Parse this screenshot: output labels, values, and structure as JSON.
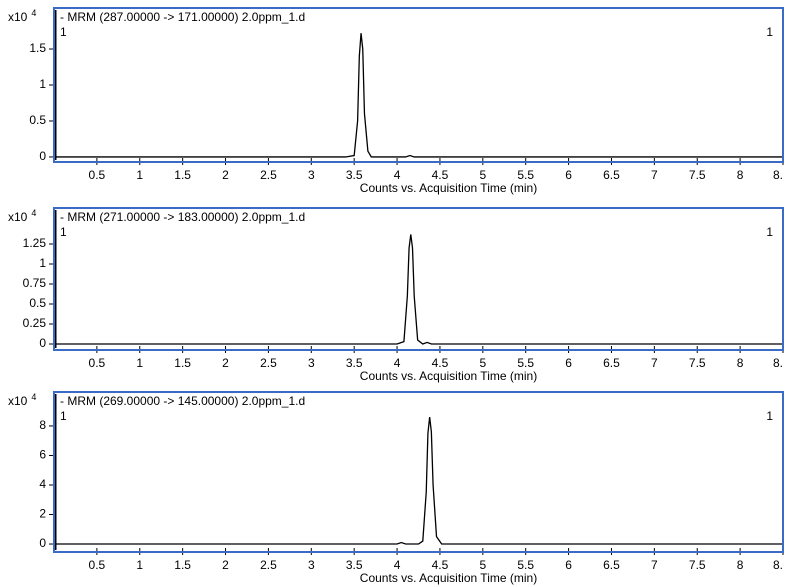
{
  "chart_data": [
    {
      "type": "line",
      "title": "- MRM (287.00000 -> 171.00000) 2.0ppm_1.d",
      "scale_prefix": "x10",
      "scale_exponent": "4",
      "panel_label": "1",
      "x_label": "Counts vs. Acquisition Time (min)",
      "frame_color": "#3a6cc6",
      "xlim": [
        0,
        8.5
      ],
      "xticks": [
        0.5,
        1,
        1.5,
        2,
        2.5,
        3,
        3.5,
        4,
        4.5,
        5,
        5.5,
        6,
        6.5,
        7,
        7.5,
        8,
        {
          "value": 8.5,
          "label": "8."
        }
      ],
      "ylim": [
        -0.07,
        2.07
      ],
      "yticks": [
        0,
        0.5,
        1,
        1.5
      ],
      "series": [
        {
          "color": "#000000",
          "x": [
            0,
            3.4,
            3.5,
            3.54,
            3.56,
            3.58,
            3.6,
            3.62,
            3.66,
            3.7,
            4.1,
            4.15,
            4.2,
            8.5
          ],
          "values": [
            0,
            0,
            0.02,
            0.5,
            1.4,
            1.72,
            1.5,
            0.6,
            0.08,
            0,
            0,
            0.02,
            0,
            0
          ]
        }
      ]
    },
    {
      "type": "line",
      "title": "- MRM (271.00000 -> 183.00000) 2.0ppm_1.d",
      "scale_prefix": "x10",
      "scale_exponent": "4",
      "panel_label": "1",
      "x_label": "Counts vs. Acquisition Time (min)",
      "frame_color": "#3a6cc6",
      "xlim": [
        0,
        8.5
      ],
      "xticks": [
        0.5,
        1,
        1.5,
        2,
        2.5,
        3,
        3.5,
        4,
        4.5,
        5,
        5.5,
        6,
        6.5,
        7,
        7.5,
        8,
        {
          "value": 8.5,
          "label": "8."
        }
      ],
      "ylim": [
        -0.075,
        1.7
      ],
      "yticks": [
        0,
        0.25,
        0.5,
        0.75,
        1,
        1.25
      ],
      "series": [
        {
          "color": "#000000",
          "x": [
            0,
            4.0,
            4.08,
            4.12,
            4.14,
            4.16,
            4.18,
            4.2,
            4.24,
            4.3,
            4.35,
            4.4,
            8.5
          ],
          "values": [
            0,
            0,
            0.03,
            0.6,
            1.2,
            1.37,
            1.2,
            0.6,
            0.05,
            0,
            0.02,
            0,
            0
          ]
        }
      ]
    },
    {
      "type": "line",
      "title": "- MRM (269.00000 -> 145.00000) 2.0ppm_1.d",
      "scale_prefix": "x10",
      "scale_exponent": "4",
      "panel_label": "1",
      "x_label": "Counts vs. Acquisition Time (min)",
      "frame_color": "#3a6cc6",
      "xlim": [
        0,
        8.5
      ],
      "xticks": [
        0.5,
        1,
        1.5,
        2,
        2.5,
        3,
        3.5,
        4,
        4.5,
        5,
        5.5,
        6,
        6.5,
        7,
        7.5,
        8,
        {
          "value": 8.5,
          "label": "8."
        }
      ],
      "ylim": [
        -0.54,
        10.3
      ],
      "yticks": [
        0,
        2,
        4,
        6,
        8
      ],
      "series": [
        {
          "color": "#000000",
          "x": [
            0,
            4.0,
            4.05,
            4.1,
            4.25,
            4.3,
            4.34,
            4.36,
            4.38,
            4.4,
            4.42,
            4.46,
            4.52,
            8.5
          ],
          "values": [
            0,
            0,
            0.1,
            0,
            0,
            0.2,
            3.5,
            7.5,
            8.6,
            7.6,
            4,
            0.5,
            0,
            0
          ]
        }
      ]
    }
  ]
}
